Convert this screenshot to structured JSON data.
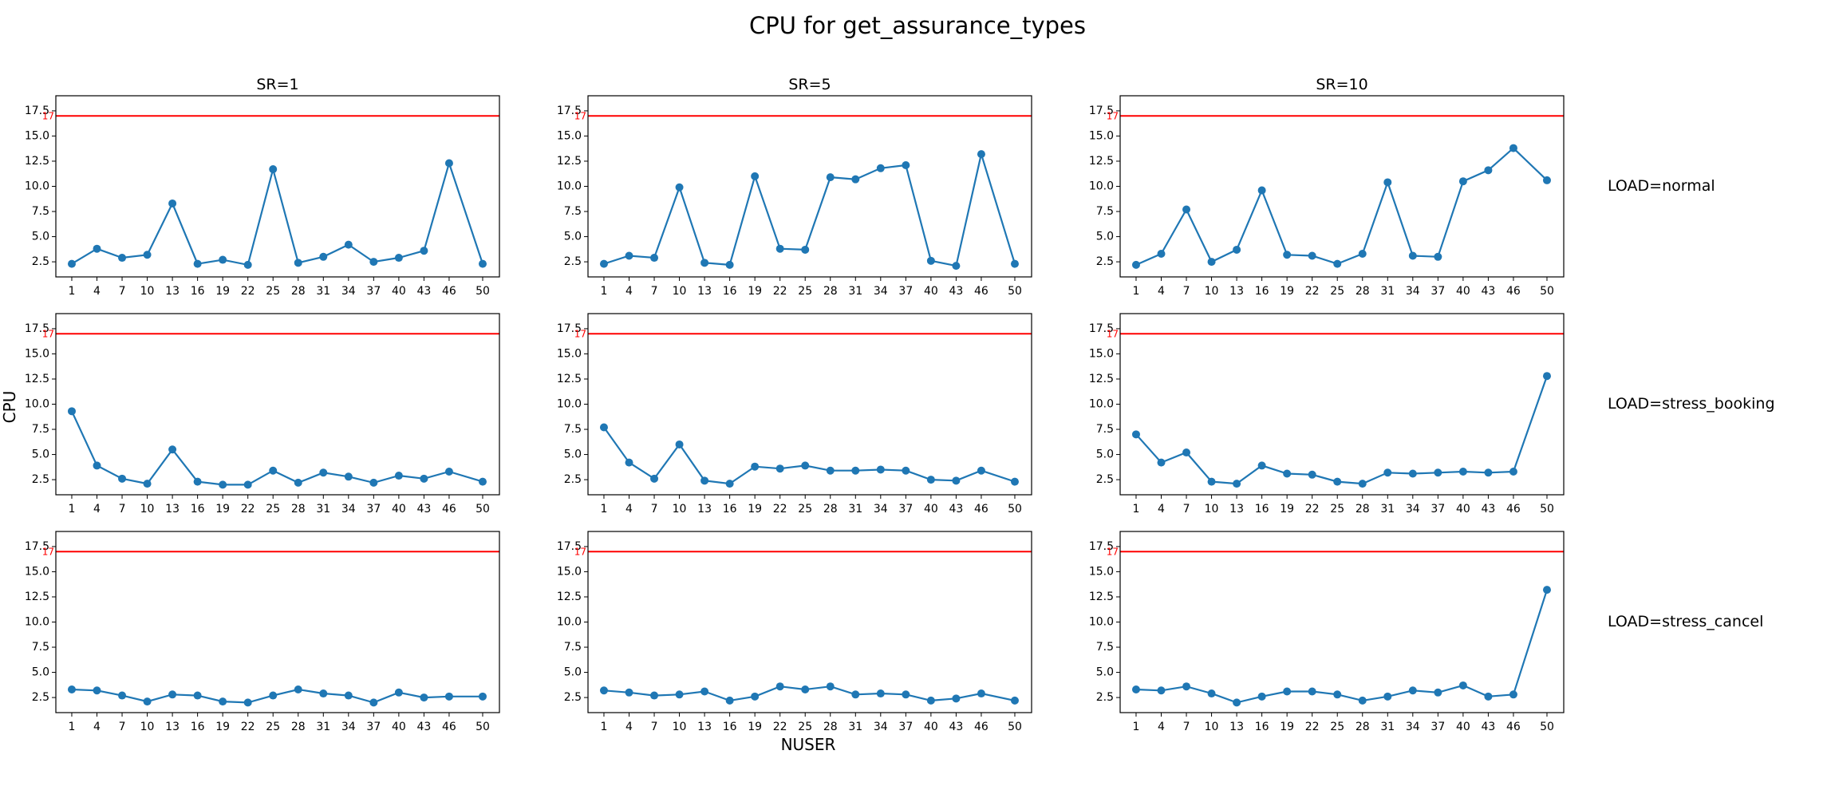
{
  "figure": {
    "title": "CPU for get_assurance_types",
    "xlabel": "NUSER",
    "ylabel": "CPU"
  },
  "colors": {
    "line": "#1f77b4",
    "threshold": "#ff0000"
  },
  "columns": [
    "SR=1",
    "SR=5",
    "SR=10"
  ],
  "rows": [
    "LOAD=normal",
    "LOAD=stress_booking",
    "LOAD=stress_cancel"
  ],
  "threshold": {
    "value": 17,
    "label": "17"
  },
  "chart_data": {
    "type": "line",
    "x": [
      1,
      4,
      7,
      10,
      13,
      16,
      19,
      22,
      25,
      28,
      31,
      34,
      37,
      40,
      43,
      46,
      50
    ],
    "xticks": [
      "1",
      "4",
      "7",
      "10",
      "13",
      "16",
      "19",
      "22",
      "25",
      "28",
      "31",
      "34",
      "37",
      "40",
      "43",
      "46",
      "50"
    ],
    "yticks": [
      "2.5",
      "5.0",
      "7.5",
      "10.0",
      "12.5",
      "15.0",
      "17.5"
    ],
    "ylim": [
      1,
      19
    ],
    "panels": [
      {
        "row": "LOAD=normal",
        "col": "SR=1",
        "values": [
          2.3,
          3.8,
          2.9,
          3.2,
          8.3,
          2.3,
          2.7,
          2.2,
          11.7,
          2.4,
          3.0,
          4.2,
          2.5,
          2.9,
          3.6,
          12.3,
          2.3
        ]
      },
      {
        "row": "LOAD=normal",
        "col": "SR=5",
        "values": [
          2.3,
          3.1,
          2.9,
          9.9,
          2.4,
          2.2,
          11.0,
          3.8,
          3.7,
          10.9,
          10.7,
          11.8,
          12.1,
          2.6,
          2.1,
          13.2,
          2.3
        ]
      },
      {
        "row": "LOAD=normal",
        "col": "SR=10",
        "values": [
          2.2,
          3.3,
          7.7,
          2.5,
          3.7,
          9.6,
          3.2,
          3.1,
          2.3,
          3.3,
          10.4,
          3.1,
          3.0,
          10.5,
          11.6,
          13.8,
          10.6
        ]
      },
      {
        "row": "LOAD=stress_booking",
        "col": "SR=1",
        "values": [
          9.3,
          3.9,
          2.6,
          2.1,
          5.5,
          2.3,
          2.0,
          2.0,
          3.4,
          2.2,
          3.2,
          2.8,
          2.2,
          2.9,
          2.6,
          3.3,
          2.3
        ]
      },
      {
        "row": "LOAD=stress_booking",
        "col": "SR=5",
        "values": [
          7.7,
          4.2,
          2.6,
          6.0,
          2.4,
          2.1,
          3.8,
          3.6,
          3.9,
          3.4,
          3.4,
          3.5,
          3.4,
          2.5,
          2.4,
          3.4,
          2.3
        ]
      },
      {
        "row": "LOAD=stress_booking",
        "col": "SR=10",
        "values": [
          7.0,
          4.2,
          5.2,
          2.3,
          2.1,
          3.9,
          3.1,
          3.0,
          2.3,
          2.1,
          3.2,
          3.1,
          3.2,
          3.3,
          3.2,
          3.3,
          12.8
        ]
      },
      {
        "row": "LOAD=stress_cancel",
        "col": "SR=1",
        "values": [
          3.3,
          3.2,
          2.7,
          2.1,
          2.8,
          2.7,
          2.1,
          2.0,
          2.7,
          3.3,
          2.9,
          2.7,
          2.0,
          3.0,
          2.5,
          2.6,
          2.6
        ]
      },
      {
        "row": "LOAD=stress_cancel",
        "col": "SR=5",
        "values": [
          3.2,
          3.0,
          2.7,
          2.8,
          3.1,
          2.2,
          2.6,
          3.6,
          3.3,
          3.6,
          2.8,
          2.9,
          2.8,
          2.2,
          2.4,
          2.9,
          2.2
        ]
      },
      {
        "row": "LOAD=stress_cancel",
        "col": "SR=10",
        "values": [
          3.3,
          3.2,
          3.6,
          2.9,
          2.0,
          2.6,
          3.1,
          3.1,
          2.8,
          2.2,
          2.6,
          3.2,
          3.0,
          3.7,
          2.6,
          2.8,
          13.2
        ]
      }
    ]
  }
}
